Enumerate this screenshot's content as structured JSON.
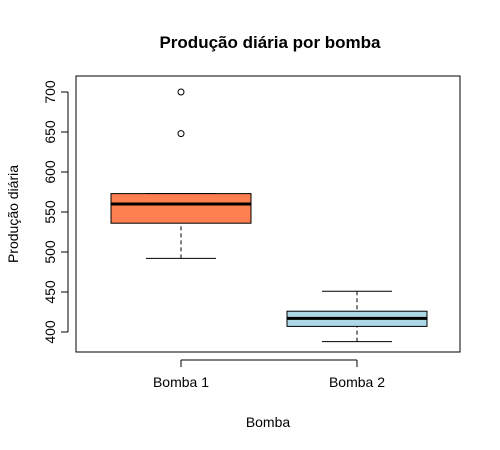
{
  "chart_data": {
    "type": "boxplot",
    "title": "Produção diária por bomba",
    "xlabel": "Bomba",
    "ylabel": "Produção diária",
    "ylim": [
      375,
      720
    ],
    "yticks": [
      400,
      450,
      500,
      550,
      600,
      650,
      700
    ],
    "categories": [
      "Bomba 1",
      "Bomba 2"
    ],
    "boxes": [
      {
        "name": "Bomba 1",
        "color": "#FF7F50",
        "whisker_low": 492,
        "q1": 536,
        "median": 560,
        "q3": 573,
        "whisker_high": 573,
        "outliers": [
          648,
          700
        ]
      },
      {
        "name": "Bomba 2",
        "color": "#ADD8E6",
        "whisker_low": 388,
        "q1": 407,
        "median": 417,
        "q3": 426,
        "whisker_high": 451,
        "outliers": []
      }
    ]
  }
}
